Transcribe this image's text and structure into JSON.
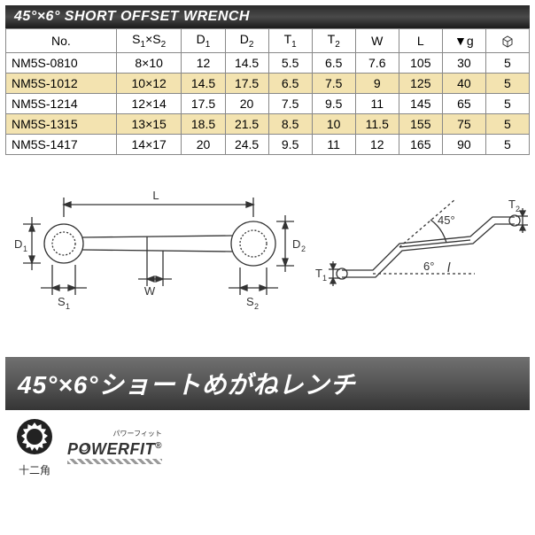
{
  "header": {
    "title": "45°×6° SHORT OFFSET WRENCH"
  },
  "table": {
    "columns": [
      "No.",
      "S₁×S₂",
      "D₁",
      "D₂",
      "T₁",
      "T₂",
      "W",
      "L",
      "▼g",
      "□"
    ],
    "col_header_html": {
      "s": "S<span class='sub'>1</span>×S<span class='sub'>2</span>",
      "d1": "D<span class='sub'>1</span>",
      "d2": "D<span class='sub'>2</span>",
      "t1": "T<span class='sub'>1</span>",
      "t2": "T<span class='sub'>2</span>"
    },
    "rows": [
      {
        "no": "NM5S-0810",
        "s": "8×10",
        "d1": "12",
        "d2": "14.5",
        "t1": "5.5",
        "t2": "6.5",
        "w": "7.6",
        "l": "105",
        "g": "30",
        "p": "5"
      },
      {
        "no": "NM5S-1012",
        "s": "10×12",
        "d1": "14.5",
        "d2": "17.5",
        "t1": "6.5",
        "t2": "7.5",
        "w": "9",
        "l": "125",
        "g": "40",
        "p": "5"
      },
      {
        "no": "NM5S-1214",
        "s": "12×14",
        "d1": "17.5",
        "d2": "20",
        "t1": "7.5",
        "t2": "9.5",
        "w": "11",
        "l": "145",
        "g": "65",
        "p": "5"
      },
      {
        "no": "NM5S-1315",
        "s": "13×15",
        "d1": "18.5",
        "d2": "21.5",
        "t1": "8.5",
        "t2": "10",
        "w": "11.5",
        "l": "155",
        "g": "75",
        "p": "5"
      },
      {
        "no": "NM5S-1417",
        "s": "14×17",
        "d1": "20",
        "d2": "24.5",
        "t1": "9.5",
        "t2": "11",
        "w": "12",
        "l": "165",
        "g": "90",
        "p": "5"
      }
    ],
    "border_color": "#888",
    "alt_row_color": "#f3e3b0"
  },
  "diagram": {
    "labels": {
      "L": "L",
      "D1": "D₁",
      "D2": "D₂",
      "W": "W",
      "S1": "S₁",
      "S2": "S₂",
      "T1": "T₁",
      "T2": "T₂",
      "a45": "45°",
      "a6": "6°"
    },
    "stroke": "#333",
    "fill": "#fff"
  },
  "title_section": {
    "main": "45°×6°ショートめがねレンチ",
    "icon_label": "十二角",
    "powerfit": "POWERFIT",
    "powerfit_sub": "パワーフィット"
  }
}
